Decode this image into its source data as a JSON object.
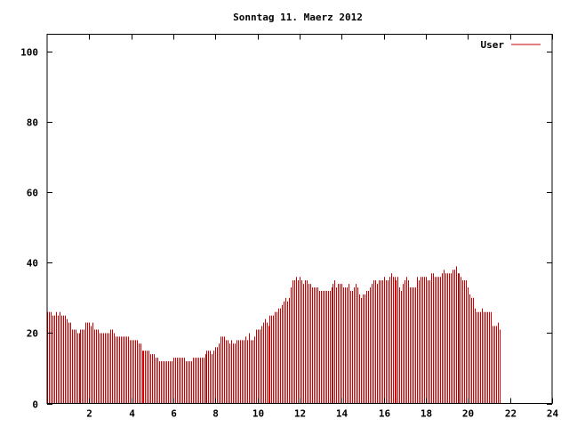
{
  "chart_data": {
    "type": "bar",
    "title": "Sonntag 11. Maerz 2012",
    "xlabel": "",
    "ylabel": "",
    "xlim": [
      0,
      24
    ],
    "ylim": [
      0,
      105
    ],
    "x_ticks": [
      2,
      4,
      6,
      8,
      10,
      12,
      14,
      16,
      18,
      20,
      22,
      24
    ],
    "y_ticks": [
      0,
      20,
      40,
      60,
      80,
      100
    ],
    "grid": false,
    "legend_position": "top-right",
    "series": [
      {
        "name": "User",
        "color": "#cc0000",
        "interval_minutes": 5,
        "values": [
          26,
          26,
          26,
          25,
          25,
          26,
          25,
          26,
          25,
          25,
          25,
          24,
          23,
          23,
          21,
          21,
          21,
          20,
          20,
          21,
          21,
          21,
          23,
          23,
          23,
          22,
          23,
          21,
          21,
          21,
          20,
          20,
          20,
          20,
          20,
          20,
          21,
          21,
          20,
          19,
          19,
          19,
          19,
          19,
          19,
          19,
          19,
          18,
          18,
          18,
          18,
          18,
          17,
          17,
          15,
          15,
          15,
          15,
          15,
          14,
          14,
          14,
          13,
          13,
          12,
          12,
          12,
          12,
          12,
          12,
          12,
          12,
          13,
          13,
          13,
          13,
          13,
          13,
          13,
          12,
          12,
          12,
          12,
          13,
          13,
          13,
          13,
          13,
          13,
          13,
          14,
          15,
          15,
          15,
          14,
          15,
          16,
          16,
          17,
          19,
          19,
          19,
          18,
          18,
          17,
          18,
          17,
          17,
          18,
          18,
          18,
          18,
          18,
          19,
          18,
          20,
          18,
          18,
          19,
          21,
          21,
          21,
          22,
          23,
          24,
          23,
          22,
          25,
          25,
          25,
          26,
          26,
          27,
          27,
          28,
          29,
          30,
          29,
          30,
          33,
          35,
          35,
          36,
          35,
          36,
          35,
          34,
          35,
          35,
          34,
          34,
          33,
          33,
          33,
          33,
          32,
          32,
          32,
          32,
          32,
          32,
          32,
          33,
          34,
          35,
          33,
          34,
          34,
          34,
          33,
          33,
          33,
          34,
          32,
          32,
          33,
          34,
          33,
          31,
          30,
          31,
          31,
          32,
          32,
          33,
          34,
          35,
          35,
          34,
          35,
          35,
          35,
          36,
          35,
          35,
          36,
          37,
          36,
          36,
          35,
          36,
          33,
          32,
          34,
          35,
          36,
          35,
          33,
          33,
          33,
          33,
          36,
          35,
          36,
          36,
          36,
          36,
          35,
          35,
          37,
          37,
          36,
          36,
          36,
          36,
          37,
          38,
          37,
          37,
          37,
          37,
          38,
          38,
          39,
          37,
          37,
          36,
          35,
          35,
          35,
          33,
          31,
          30,
          30,
          27,
          26,
          26,
          26,
          27,
          26,
          26,
          26,
          26,
          26,
          22,
          22,
          22,
          23,
          21
        ]
      }
    ]
  }
}
